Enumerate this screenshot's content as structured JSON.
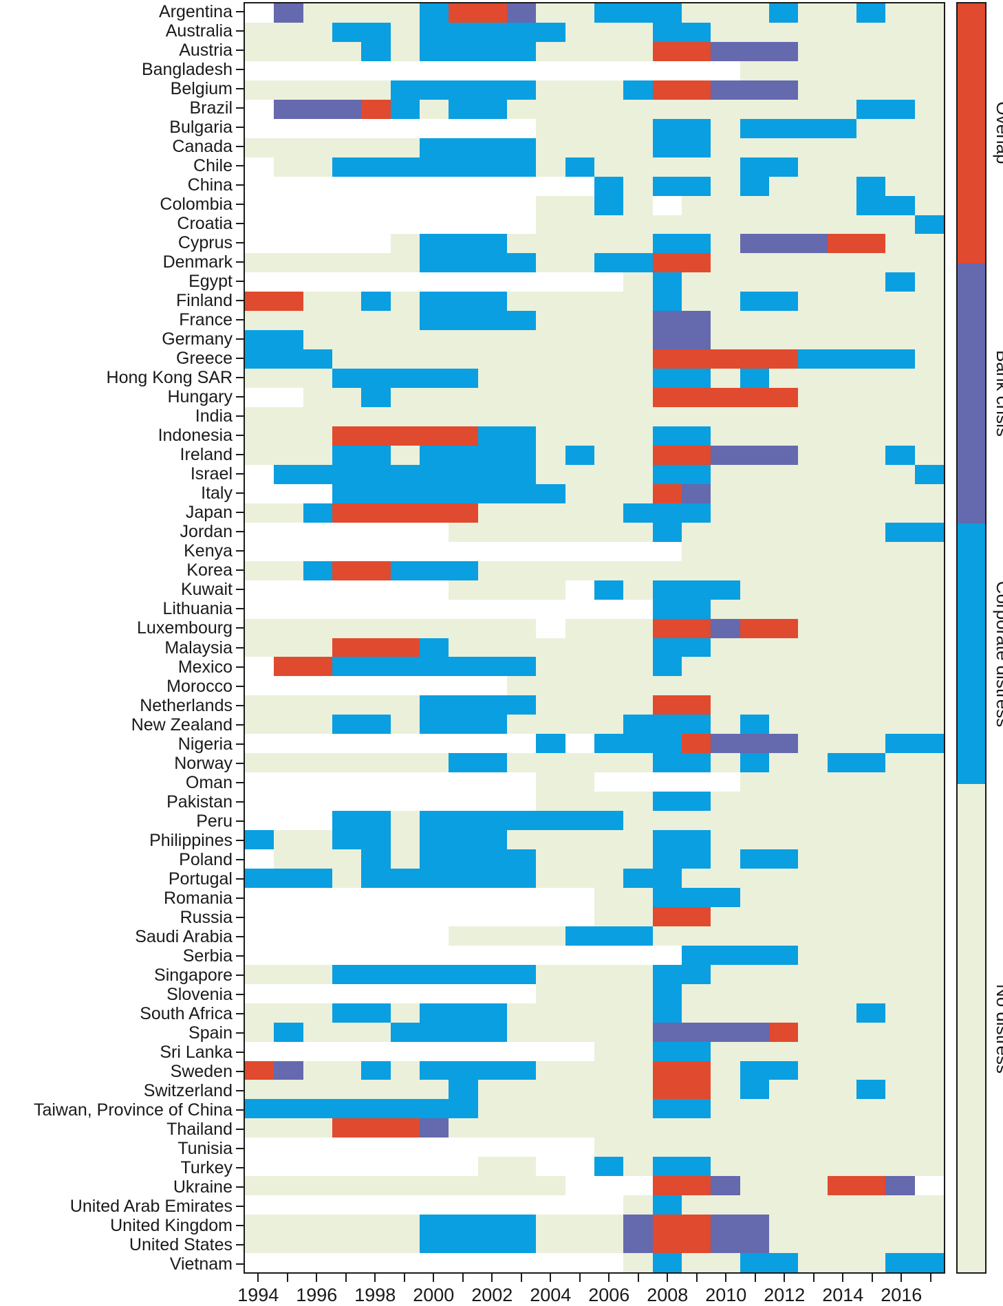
{
  "chart_data": {
    "type": "heatmap",
    "title": "",
    "x_tick_labels": [
      "1994",
      "1996",
      "1998",
      "2000",
      "2002",
      "2004",
      "2006",
      "2008",
      "2010",
      "2012",
      "2014",
      "2016"
    ],
    "x_years_range": [
      1994,
      2017
    ],
    "grid": false,
    "legend_position": "right-colorbar",
    "code_meaning": {
      ".": "no data",
      "N": "No distress",
      "C": "Corporate distress",
      "B": "Bank crisis",
      "O": "Overlap"
    },
    "colors": {
      ".": "#ffffff",
      "N": "#ebf0da",
      "C": "#099fe1",
      "B": "#6569ae",
      "O": "#e04a2e"
    },
    "legend": [
      {
        "label": "Overlap",
        "color": "#e04a2e"
      },
      {
        "label": "Bank crisis",
        "color": "#6569ae"
      },
      {
        "label": "Corporate distress",
        "color": "#099fe1"
      },
      {
        "label": "No distress",
        "color": "#ebf0da"
      }
    ],
    "rows": [
      {
        "country": "Argentina",
        "pattern": ".BNNNNCOOBNNCCCNNNCNNCNN"
      },
      {
        "country": "Australia",
        "pattern": "NNNCCNCCCCCNNNCCNNNNNNNN"
      },
      {
        "country": "Austria",
        "pattern": "NNNNCNCCCCNNNNOOBBBNNNNN"
      },
      {
        "country": "Bangladesh",
        "pattern": ".................NNNNNNN"
      },
      {
        "country": "Belgium",
        "pattern": "NNNNNCCCCCNNNCOOBBBNNNNN"
      },
      {
        "country": "Brazil",
        "pattern": ".BBBOCNCCNNNNNNNNNNNNCCN"
      },
      {
        "country": "Bulgaria",
        "pattern": "..........NNNNCCNCCCCNNN"
      },
      {
        "country": "Canada",
        "pattern": "NNNNNNCCCCNNNNCCNNNNNNNN"
      },
      {
        "country": "Chile",
        "pattern": ".NNCCCCCCCNCNNNNNCCNNNNN"
      },
      {
        "country": "China",
        "pattern": "............CNCCNCNNNCNN"
      },
      {
        "country": "Colombia",
        "pattern": "..........NNCN.NNNNNNCCN"
      },
      {
        "country": "Croatia",
        "pattern": "..........NNNNNNNNNNNNNC"
      },
      {
        "country": "Cyprus",
        "pattern": ".....NCCCNNNNNCCNBBBOONN"
      },
      {
        "country": "Denmark",
        "pattern": "NNNNNNCCCCNNCCOONNNNNNNN"
      },
      {
        "country": "Egypt",
        "pattern": ".............NCNNNNNNNCN"
      },
      {
        "country": "Finland",
        "pattern": "OONNCNCCCNNNNNCNNCCNNNNN"
      },
      {
        "country": "France",
        "pattern": "NNNNNNCCCCNNNNBBNNNNNNNN"
      },
      {
        "country": "Germany",
        "pattern": "CCNNNNNNNNNNNNBBNNNNNNNN"
      },
      {
        "country": "Greece",
        "pattern": "CCCNNNNNNNNNNNOOOOOCCCCN"
      },
      {
        "country": "Hong Kong SAR",
        "pattern": "NNNCCCCCNNNNNNCCNCNNNNNN"
      },
      {
        "country": "Hungary",
        "pattern": "..NNCNNNNNNNNNOOOOONNNNN"
      },
      {
        "country": "India",
        "pattern": "NNNNNNNNNNNNNNNNNNNNNNNN"
      },
      {
        "country": "Indonesia",
        "pattern": "NNNOOOOOCCNNNNCCNNNNNNNN"
      },
      {
        "country": "Ireland",
        "pattern": "NNNCCNCCCCNCNNOOBBBNNNCN"
      },
      {
        "country": "Israel",
        "pattern": ".CCCCCCCCCNNNNCCNNNNNNNC"
      },
      {
        "country": "Italy",
        "pattern": "...CCCCCCCCNNNOBNNNNNNNN"
      },
      {
        "country": "Japan",
        "pattern": "NNCOOOOONNNNNCCCNNNNNNNN"
      },
      {
        "country": "Jordan",
        "pattern": ".......NNNNNNNCNNNNNNNCC"
      },
      {
        "country": "Kenya",
        "pattern": "...............NNNNNNNNN"
      },
      {
        "country": "Korea",
        "pattern": "NNCOOCCCNNNNNNNNNNNNNNNN"
      },
      {
        "country": "Kuwait",
        "pattern": ".......NNNN.CNCCCNNNNNNN"
      },
      {
        "country": "Lithuania",
        "pattern": "..............CCNNNNNNNN"
      },
      {
        "country": "Luxembourg",
        "pattern": "NNNNNNNNNN.NNNOOBOONNNNN"
      },
      {
        "country": "Malaysia",
        "pattern": "NNNOOOCNNNNNNNCCNNNNNNNN"
      },
      {
        "country": "Mexico",
        "pattern": ".OOCCCCCCCNNNNCNNNNNNNNN"
      },
      {
        "country": "Morocco",
        "pattern": ".........NNNNNNNNNNNNNNN"
      },
      {
        "country": "Netherlands",
        "pattern": "NNNNNNCCCCNNNNOONNNNNNNN"
      },
      {
        "country": "New Zealand",
        "pattern": "NNNCCNCCCNNNNCCCNCNNNNNN"
      },
      {
        "country": "Nigeria",
        "pattern": "..........C.CCCOBBBNNNCC"
      },
      {
        "country": "Norway",
        "pattern": "NNNNNNNCCNNNNNCCNCNNCCNN"
      },
      {
        "country": "Oman",
        "pattern": "..........NN.....NNNNNNN"
      },
      {
        "country": "Pakistan",
        "pattern": "..........NNNNCCNNNNNNNN"
      },
      {
        "country": "Peru",
        "pattern": "...CCNCCCCCCCNNNNNNNNNNN"
      },
      {
        "country": "Philippines",
        "pattern": "CNNCCNCCCNNNNNCCNNNNNNNN"
      },
      {
        "country": "Poland",
        "pattern": ".NNNCNCCCCNNNNCCNCCNNNNN"
      },
      {
        "country": "Portugal",
        "pattern": "CCCNCCCCCCNNNCCNNNNNNNNN"
      },
      {
        "country": "Romania",
        "pattern": "............NNCCCNNNNNNN"
      },
      {
        "country": "Russia",
        "pattern": "............NNOONNNNNNNN"
      },
      {
        "country": "Saudi Arabia",
        "pattern": ".......NNNNCCCNNNNNNNNNN"
      },
      {
        "country": "Serbia",
        "pattern": "...............CCCCNNNNN"
      },
      {
        "country": "Singapore",
        "pattern": "NNNCCCCCCCNNNNCCNNNNNNNN"
      },
      {
        "country": "Slovenia",
        "pattern": "..........NNNNCNNNNNNNNN"
      },
      {
        "country": "South Africa",
        "pattern": "NNNCCNCCCNNNNNCNNNNNNCNN"
      },
      {
        "country": "Spain",
        "pattern": "NCNNNCCCCNNNNNBBBBONNNNN"
      },
      {
        "country": "Sri Lanka",
        "pattern": "............NNCCNNNNNNNN"
      },
      {
        "country": "Sweden",
        "pattern": "OBNNCNCCCCNNNNOONCCNNNNN"
      },
      {
        "country": "Switzerland",
        "pattern": "NNNNNNNCNNNNNNOONCNNNCNN"
      },
      {
        "country": "Taiwan, Province of China",
        "pattern": "CCCCCCCCNNNNNNCCNNNNNNNN"
      },
      {
        "country": "Thailand",
        "pattern": "NNNOOOBNNNNNNNNNNNNNNNNN"
      },
      {
        "country": "Tunisia",
        "pattern": "............NNNNNNNNNNNN"
      },
      {
        "country": "Turkey",
        "pattern": "........NN..CNCCNNNNNNNN"
      },
      {
        "country": "Ukraine",
        "pattern": "NNNNNNNNNNN...OOBNNNOOB."
      },
      {
        "country": "United Arab Emirates",
        "pattern": ".............NCNNNNNNNNN"
      },
      {
        "country": "United Kingdom",
        "pattern": "NNNNNNCCCCNNNBOOBBNNNNNN"
      },
      {
        "country": "United States",
        "pattern": "NNNNNNCCCCNNNBOOBBNNNNNN"
      },
      {
        "country": "Vietnam",
        "pattern": ".............NCNNCCNNNCC"
      }
    ]
  },
  "layout_text": {
    "note": "all visible text lives in chart_data (country names, year tick labels, legend labels)"
  }
}
